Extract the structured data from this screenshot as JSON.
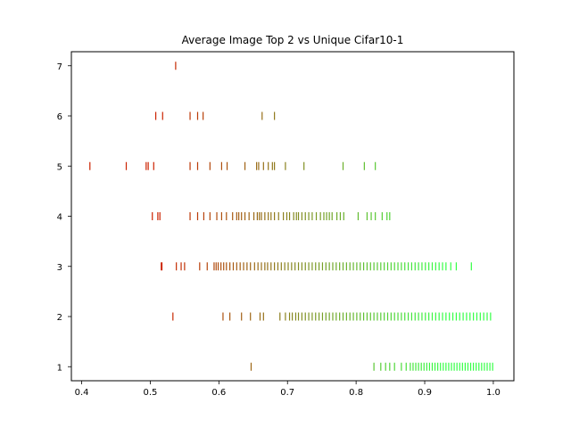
{
  "chart_data": {
    "type": "scatter",
    "title": "Average Image Top 2 vs Unique Cifar10-1",
    "xlabel": "",
    "ylabel": "",
    "xlim": [
      0.385,
      1.03
    ],
    "ylim": [
      0.72,
      7.28
    ],
    "xticks": [
      0.4,
      0.5,
      0.6,
      0.7,
      0.8,
      0.9,
      1.0
    ],
    "xtick_labels": [
      "0.4",
      "0.5",
      "0.6",
      "0.7",
      "0.8",
      "0.9",
      "1.0"
    ],
    "yticks": [
      1,
      2,
      3,
      4,
      5,
      6,
      7
    ],
    "ytick_labels": [
      "1",
      "2",
      "3",
      "4",
      "5",
      "6",
      "7"
    ],
    "grid": false,
    "marker": "vertical-line",
    "color_scale": {
      "low": "#cc2200",
      "high": "#33ff44"
    },
    "rows": [
      {
        "y": 7,
        "x": [
          0.537
        ]
      },
      {
        "y": 6,
        "x": [
          0.508,
          0.518,
          0.558,
          0.569,
          0.577,
          0.663,
          0.681
        ]
      },
      {
        "y": 5,
        "x": [
          0.412,
          0.465,
          0.494,
          0.497,
          0.505,
          0.558,
          0.569,
          0.587,
          0.604,
          0.612,
          0.638,
          0.655,
          0.658,
          0.665,
          0.672,
          0.678,
          0.681,
          0.697,
          0.724,
          0.781,
          0.812,
          0.828
        ]
      },
      {
        "y": 4,
        "x": [
          0.503,
          0.511,
          0.514,
          0.558,
          0.569,
          0.578,
          0.587,
          0.597,
          0.604,
          0.611,
          0.62,
          0.626,
          0.629,
          0.633,
          0.638,
          0.644,
          0.651,
          0.656,
          0.659,
          0.662,
          0.667,
          0.672,
          0.676,
          0.681,
          0.687,
          0.694,
          0.699,
          0.703,
          0.709,
          0.713,
          0.716,
          0.721,
          0.726,
          0.731,
          0.736,
          0.742,
          0.748,
          0.753,
          0.757,
          0.761,
          0.765,
          0.772,
          0.777,
          0.782,
          0.803,
          0.816,
          0.822,
          0.828,
          0.838,
          0.845,
          0.849
        ]
      },
      {
        "y": 3,
        "x": [
          0.516,
          0.517,
          0.538,
          0.545,
          0.55,
          0.572,
          0.583,
          0.593,
          0.596,
          0.599,
          0.603,
          0.607,
          0.611,
          0.616,
          0.621,
          0.626,
          0.631,
          0.636,
          0.641,
          0.646,
          0.652,
          0.657,
          0.662,
          0.667,
          0.671,
          0.676,
          0.681,
          0.686,
          0.691,
          0.696,
          0.701,
          0.706,
          0.711,
          0.716,
          0.721,
          0.726,
          0.731,
          0.736,
          0.741,
          0.746,
          0.751,
          0.756,
          0.761,
          0.766,
          0.771,
          0.776,
          0.781,
          0.786,
          0.791,
          0.796,
          0.801,
          0.806,
          0.811,
          0.816,
          0.821,
          0.826,
          0.831,
          0.836,
          0.841,
          0.846,
          0.851,
          0.856,
          0.861,
          0.866,
          0.871,
          0.876,
          0.881,
          0.886,
          0.891,
          0.896,
          0.901,
          0.906,
          0.911,
          0.916,
          0.921,
          0.926,
          0.931,
          0.938,
          0.946,
          0.968
        ]
      },
      {
        "y": 2,
        "x": [
          0.533,
          0.606,
          0.616,
          0.633,
          0.646,
          0.66,
          0.665,
          0.689,
          0.697,
          0.703,
          0.707,
          0.712,
          0.716,
          0.721,
          0.726,
          0.731,
          0.736,
          0.741,
          0.746,
          0.751,
          0.756,
          0.761,
          0.766,
          0.771,
          0.776,
          0.781,
          0.786,
          0.791,
          0.796,
          0.801,
          0.806,
          0.811,
          0.816,
          0.821,
          0.826,
          0.831,
          0.836,
          0.841,
          0.846,
          0.851,
          0.856,
          0.861,
          0.866,
          0.871,
          0.876,
          0.881,
          0.886,
          0.891,
          0.896,
          0.901,
          0.906,
          0.911,
          0.916,
          0.921,
          0.926,
          0.931,
          0.936,
          0.941,
          0.946,
          0.951,
          0.956,
          0.961,
          0.966,
          0.971,
          0.976,
          0.981,
          0.986,
          0.991,
          0.996
        ]
      },
      {
        "y": 1,
        "x": [
          0.647,
          0.826,
          0.836,
          0.843,
          0.849,
          0.856,
          0.866,
          0.873,
          0.879,
          0.883,
          0.887,
          0.891,
          0.895,
          0.899,
          0.903,
          0.907,
          0.911,
          0.915,
          0.919,
          0.923,
          0.927,
          0.931,
          0.935,
          0.939,
          0.943,
          0.947,
          0.951,
          0.955,
          0.959,
          0.963,
          0.967,
          0.971,
          0.975,
          0.979,
          0.983,
          0.987,
          0.991,
          0.995,
          0.999
        ]
      }
    ]
  }
}
